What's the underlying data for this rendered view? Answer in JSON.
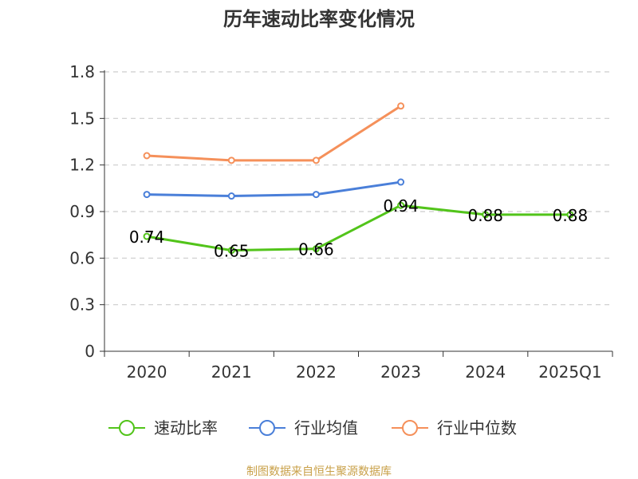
{
  "chart_data": {
    "type": "line",
    "title": "历年速动比率变化情况",
    "categories": [
      "2020",
      "2021",
      "2022",
      "2023",
      "2024",
      "2025Q1"
    ],
    "ylim": [
      0,
      1.8
    ],
    "yticks": [
      "0",
      "0.3",
      "0.6",
      "0.9",
      "1.2",
      "1.5",
      "1.8"
    ],
    "grid": true,
    "legend_position": "bottom",
    "series": [
      {
        "name": "速动比率",
        "color": "#52c41a",
        "values": [
          0.74,
          0.65,
          0.66,
          0.94,
          0.88,
          0.88
        ],
        "labels": [
          "0.74",
          "0.65",
          "0.66",
          "0.94",
          "0.88",
          "0.88"
        ]
      },
      {
        "name": "行业均值",
        "color": "#4a7fd9",
        "values": [
          1.01,
          1.0,
          1.01,
          1.09,
          null,
          null
        ]
      },
      {
        "name": "行业中位数",
        "color": "#f5905a",
        "values": [
          1.26,
          1.23,
          1.23,
          1.58,
          null,
          null
        ]
      }
    ]
  },
  "source": "制图数据来自恒生聚源数据库"
}
